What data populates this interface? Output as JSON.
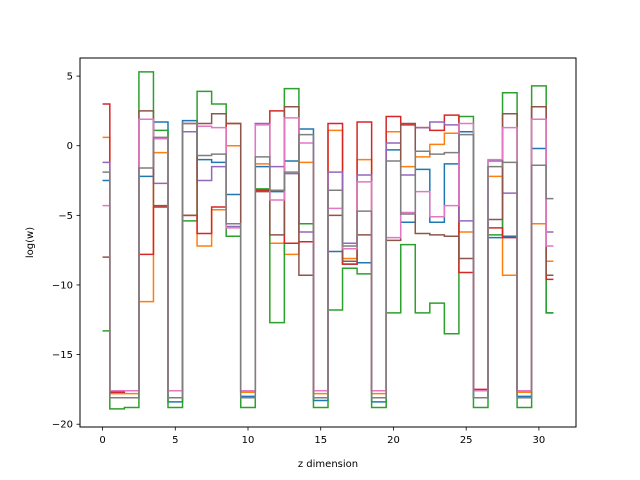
{
  "chart_data": {
    "type": "line",
    "drawstyle": "steps-mid",
    "xlabel": "z dimension",
    "ylabel": "log(w)",
    "xlim": [
      -1.55,
      32.55
    ],
    "ylim": [
      -20.2,
      6.3
    ],
    "xticks": [
      0,
      5,
      10,
      15,
      20,
      25,
      30
    ],
    "yticks": [
      -20,
      -15,
      -10,
      -5,
      0,
      5
    ],
    "grid": false,
    "x": [
      0,
      1,
      2,
      3,
      4,
      5,
      6,
      7,
      8,
      9,
      10,
      11,
      12,
      13,
      14,
      15,
      16,
      17,
      18,
      19,
      20,
      21,
      22,
      23,
      24,
      25,
      26,
      27,
      28,
      29,
      30,
      31
    ],
    "series": [
      {
        "color": "#1f77b4",
        "values": [
          -2.5,
          -18.1,
          -18.1,
          -2.2,
          1.7,
          -18.4,
          1.8,
          -1.0,
          -1.2,
          -3.5,
          -18.0,
          -1.5,
          -3.3,
          -1.1,
          1.2,
          -18.3,
          -7.6,
          -8.5,
          -8.4,
          -18.4,
          -0.3,
          -5.5,
          -1.7,
          -5.5,
          -1.3,
          1.0,
          -18.1,
          -6.6,
          -6.5,
          -18.0,
          -0.2,
          -12.0
        ]
      },
      {
        "color": "#ff7f0e",
        "values": [
          0.6,
          -17.8,
          -17.8,
          -11.2,
          -0.5,
          -17.6,
          1.6,
          -7.2,
          -4.6,
          0.0,
          -17.7,
          -1.3,
          -7.0,
          -7.8,
          -1.2,
          -17.8,
          1.1,
          -8.1,
          -1.0,
          -17.8,
          1.0,
          -1.5,
          -0.8,
          0.1,
          0.9,
          -6.2,
          -17.6,
          -2.2,
          -9.3,
          -17.7,
          -5.6,
          -8.3
        ]
      },
      {
        "color": "#2ca02c",
        "values": [
          -13.3,
          -18.9,
          -18.8,
          5.3,
          1.1,
          -18.8,
          -5.4,
          3.9,
          3.0,
          -6.5,
          -18.8,
          -3.1,
          -12.7,
          4.1,
          -5.6,
          -18.8,
          -11.8,
          -8.8,
          -9.2,
          -18.8,
          -12.0,
          -7.1,
          -12.0,
          -11.3,
          -13.5,
          2.1,
          -18.8,
          -6.4,
          3.8,
          -18.8,
          4.3,
          -12.0
        ]
      },
      {
        "color": "#d62728",
        "values": [
          3.0,
          -17.7,
          -17.6,
          -7.8,
          -4.4,
          -17.6,
          -5.0,
          -6.3,
          -4.4,
          1.6,
          -17.6,
          -3.2,
          2.5,
          -7.0,
          -6.9,
          -17.6,
          1.6,
          -8.5,
          1.7,
          -17.6,
          2.1,
          1.5,
          1.3,
          1.1,
          2.2,
          -9.1,
          -17.5,
          -5.9,
          -6.6,
          -17.6,
          2.8,
          -9.6
        ]
      },
      {
        "color": "#9467bd",
        "values": [
          -1.2,
          -17.6,
          -17.6,
          1.9,
          -2.7,
          -17.6,
          1.0,
          -2.5,
          -1.5,
          -5.8,
          -17.6,
          1.6,
          -1.5,
          -2.0,
          -6.2,
          -17.6,
          -1.9,
          -7.0,
          -2.1,
          -17.6,
          0.2,
          -2.1,
          1.3,
          1.7,
          1.5,
          -5.4,
          -17.6,
          -1.1,
          -3.4,
          -17.6,
          1.9,
          -6.2
        ]
      },
      {
        "color": "#8c564b",
        "values": [
          -8.0,
          -17.6,
          -17.6,
          2.5,
          -4.3,
          -17.6,
          -5.0,
          1.6,
          2.3,
          1.6,
          -17.6,
          -3.3,
          -6.4,
          2.8,
          -9.3,
          -17.6,
          -5.0,
          -8.3,
          -6.4,
          -17.6,
          -6.8,
          1.6,
          -6.3,
          -6.4,
          -6.5,
          -8.1,
          -17.6,
          -5.3,
          2.3,
          -17.6,
          2.8,
          -9.3
        ]
      },
      {
        "color": "#e377c2",
        "values": [
          -4.3,
          -17.6,
          -17.6,
          1.9,
          0.5,
          -17.6,
          1.6,
          1.4,
          1.3,
          -5.9,
          -17.6,
          1.5,
          -3.9,
          2.0,
          0.2,
          -17.6,
          -4.5,
          -7.4,
          -2.6,
          -17.6,
          -6.6,
          -4.8,
          -3.3,
          -5.1,
          -4.3,
          1.6,
          -17.6,
          -1.0,
          1.3,
          -17.6,
          1.9,
          -7.2
        ]
      },
      {
        "color": "#7f7f7f",
        "values": [
          -1.9,
          -18.1,
          -18.1,
          -1.6,
          0.6,
          -18.1,
          1.6,
          -0.7,
          -0.6,
          -5.6,
          -18.1,
          -0.8,
          -3.2,
          -1.9,
          0.8,
          -18.1,
          -3.2,
          -7.2,
          -4.7,
          -18.1,
          -1.1,
          -4.9,
          -0.4,
          -0.6,
          -0.5,
          0.8,
          -18.1,
          -1.5,
          -1.2,
          -18.1,
          -1.4,
          -3.8
        ]
      }
    ]
  }
}
